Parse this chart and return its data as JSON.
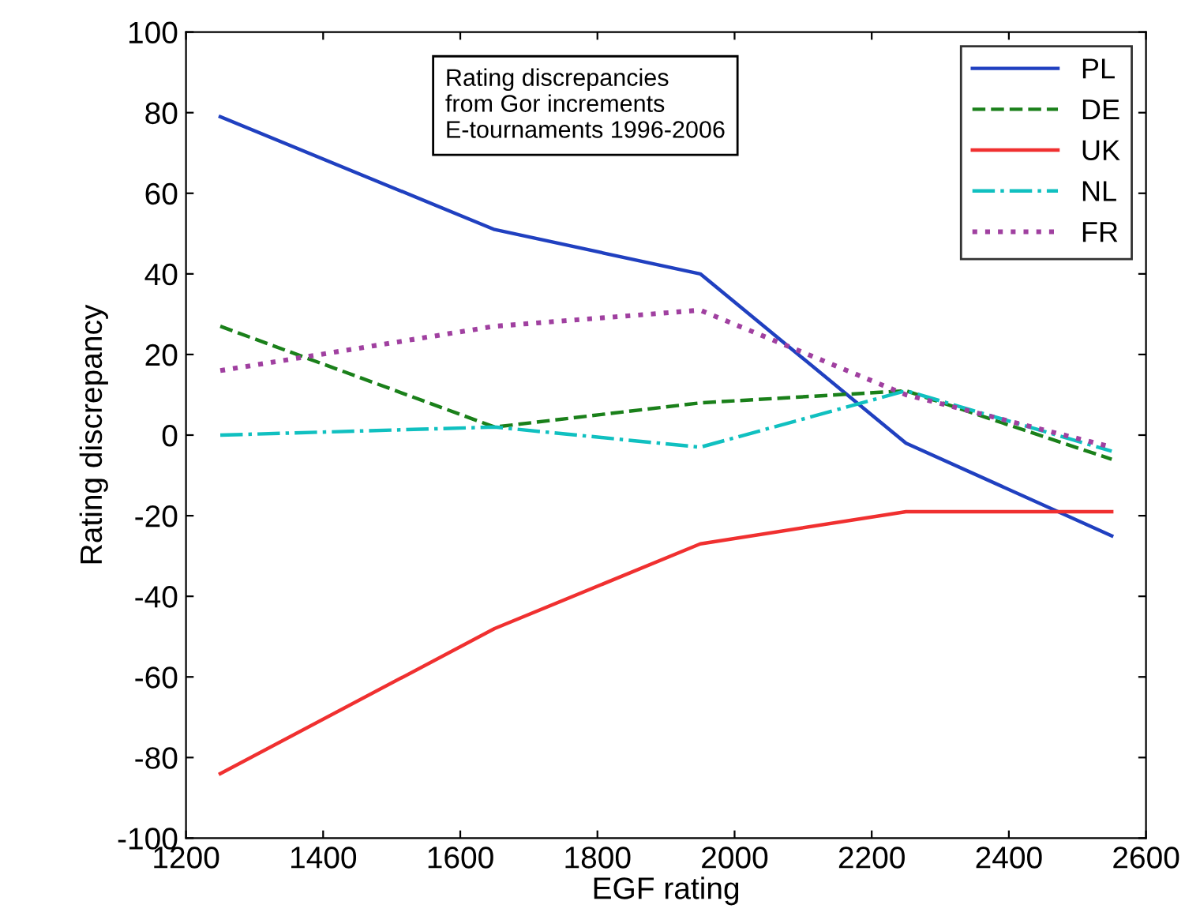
{
  "chart_data": {
    "type": "line",
    "xlabel": "EGF rating",
    "ylabel": "Rating discrepancy",
    "annotations": [
      "Rating discrepancies\nfrom Gor increments\nE-tournaments 1996-2006"
    ],
    "x": [
      1250,
      1650,
      1950,
      2250,
      2550
    ],
    "series": [
      {
        "name": "PL",
        "color": "#2040c0",
        "line_style": "solid",
        "values": [
          79,
          51,
          40,
          -2,
          -25
        ]
      },
      {
        "name": "DE",
        "color": "#1a801a",
        "line_style": "dashed",
        "values": [
          27,
          2,
          8,
          11,
          -6
        ]
      },
      {
        "name": "UK",
        "color": "#f03030",
        "line_style": "solid",
        "values": [
          -84,
          -48,
          -27,
          -19,
          -19
        ]
      },
      {
        "name": "NL",
        "color": "#10c0c0",
        "line_style": "dashdot",
        "values": [
          0,
          2,
          -3,
          11,
          -4
        ]
      },
      {
        "name": "FR",
        "color": "#a040a0",
        "line_style": "dotted",
        "values": [
          16,
          27,
          31,
          10,
          -3
        ]
      }
    ],
    "xlim": [
      1200,
      2600
    ],
    "ylim": [
      -100,
      100
    ],
    "xticks": [
      1200,
      1400,
      1600,
      1800,
      2000,
      2200,
      2400,
      2600
    ],
    "yticks": [
      -100,
      -80,
      -60,
      -40,
      -20,
      0,
      20,
      40,
      60,
      80,
      100
    ],
    "grid": false,
    "legend": "top right"
  }
}
